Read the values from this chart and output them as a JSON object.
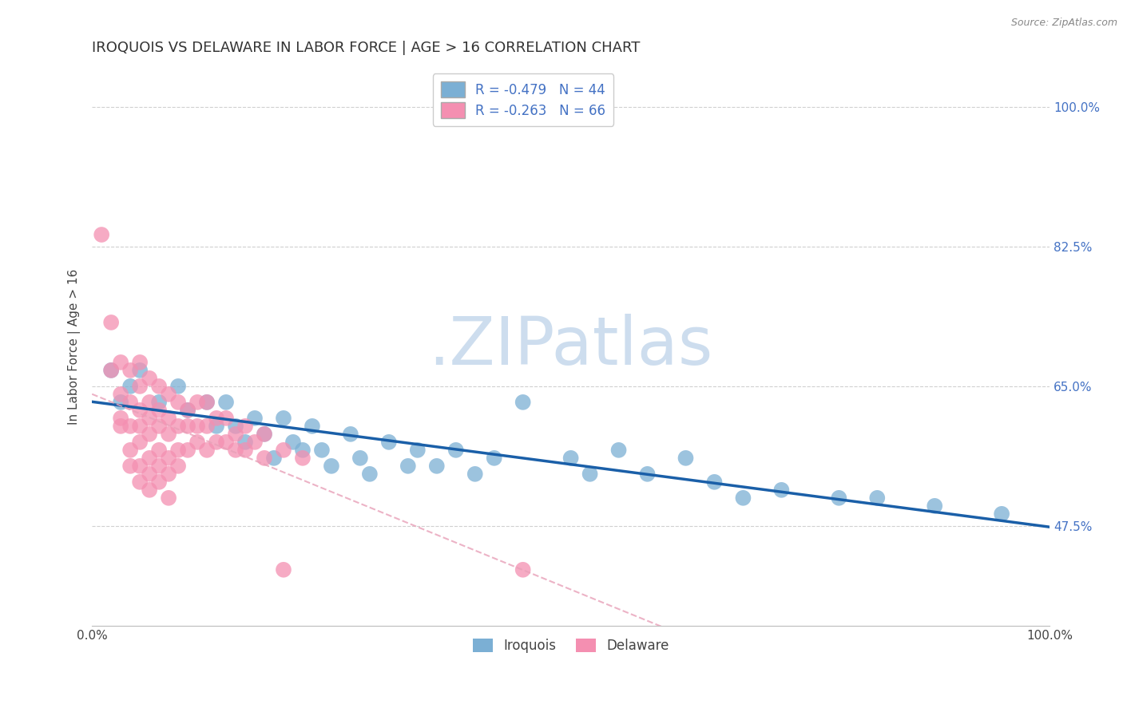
{
  "title": "IROQUOIS VS DELAWARE IN LABOR FORCE | AGE > 16 CORRELATION CHART",
  "source_text": "Source: ZipAtlas.com",
  "ylabel": "In Labor Force | Age > 16",
  "xlim": [
    0.0,
    1.0
  ],
  "ylim": [
    0.35,
    1.05
  ],
  "x_tick_labels": [
    "0.0%",
    "100.0%"
  ],
  "y_tick_labels": [
    "47.5%",
    "65.0%",
    "82.5%",
    "100.0%"
  ],
  "y_tick_positions": [
    0.475,
    0.65,
    0.825,
    1.0
  ],
  "iroquois_color": "#7bafd4",
  "iroquois_line_color": "#1a5fa8",
  "delaware_color": "#f48fb1",
  "delaware_line_color": "#e8a0b8",
  "iroquois_scatter": [
    [
      0.02,
      0.67
    ],
    [
      0.03,
      0.63
    ],
    [
      0.04,
      0.65
    ],
    [
      0.05,
      0.67
    ],
    [
      0.07,
      0.63
    ],
    [
      0.09,
      0.65
    ],
    [
      0.1,
      0.62
    ],
    [
      0.12,
      0.63
    ],
    [
      0.13,
      0.6
    ],
    [
      0.14,
      0.63
    ],
    [
      0.15,
      0.6
    ],
    [
      0.16,
      0.58
    ],
    [
      0.17,
      0.61
    ],
    [
      0.18,
      0.59
    ],
    [
      0.19,
      0.56
    ],
    [
      0.2,
      0.61
    ],
    [
      0.21,
      0.58
    ],
    [
      0.22,
      0.57
    ],
    [
      0.23,
      0.6
    ],
    [
      0.24,
      0.57
    ],
    [
      0.25,
      0.55
    ],
    [
      0.27,
      0.59
    ],
    [
      0.28,
      0.56
    ],
    [
      0.29,
      0.54
    ],
    [
      0.31,
      0.58
    ],
    [
      0.33,
      0.55
    ],
    [
      0.34,
      0.57
    ],
    [
      0.36,
      0.55
    ],
    [
      0.38,
      0.57
    ],
    [
      0.4,
      0.54
    ],
    [
      0.42,
      0.56
    ],
    [
      0.45,
      0.63
    ],
    [
      0.5,
      0.56
    ],
    [
      0.52,
      0.54
    ],
    [
      0.55,
      0.57
    ],
    [
      0.58,
      0.54
    ],
    [
      0.62,
      0.56
    ],
    [
      0.65,
      0.53
    ],
    [
      0.68,
      0.51
    ],
    [
      0.72,
      0.52
    ],
    [
      0.78,
      0.51
    ],
    [
      0.82,
      0.51
    ],
    [
      0.88,
      0.5
    ],
    [
      0.95,
      0.49
    ]
  ],
  "delaware_scatter": [
    [
      0.01,
      0.84
    ],
    [
      0.02,
      0.73
    ],
    [
      0.02,
      0.67
    ],
    [
      0.03,
      0.68
    ],
    [
      0.03,
      0.64
    ],
    [
      0.03,
      0.61
    ],
    [
      0.03,
      0.6
    ],
    [
      0.04,
      0.67
    ],
    [
      0.04,
      0.63
    ],
    [
      0.04,
      0.6
    ],
    [
      0.04,
      0.57
    ],
    [
      0.04,
      0.55
    ],
    [
      0.05,
      0.68
    ],
    [
      0.05,
      0.65
    ],
    [
      0.05,
      0.62
    ],
    [
      0.05,
      0.6
    ],
    [
      0.05,
      0.58
    ],
    [
      0.05,
      0.55
    ],
    [
      0.05,
      0.53
    ],
    [
      0.06,
      0.66
    ],
    [
      0.06,
      0.63
    ],
    [
      0.06,
      0.61
    ],
    [
      0.06,
      0.59
    ],
    [
      0.06,
      0.56
    ],
    [
      0.06,
      0.54
    ],
    [
      0.06,
      0.52
    ],
    [
      0.07,
      0.65
    ],
    [
      0.07,
      0.62
    ],
    [
      0.07,
      0.6
    ],
    [
      0.07,
      0.57
    ],
    [
      0.07,
      0.55
    ],
    [
      0.07,
      0.53
    ],
    [
      0.08,
      0.64
    ],
    [
      0.08,
      0.61
    ],
    [
      0.08,
      0.59
    ],
    [
      0.08,
      0.56
    ],
    [
      0.08,
      0.54
    ],
    [
      0.08,
      0.51
    ],
    [
      0.09,
      0.63
    ],
    [
      0.09,
      0.6
    ],
    [
      0.09,
      0.57
    ],
    [
      0.09,
      0.55
    ],
    [
      0.1,
      0.62
    ],
    [
      0.1,
      0.6
    ],
    [
      0.1,
      0.57
    ],
    [
      0.11,
      0.63
    ],
    [
      0.11,
      0.6
    ],
    [
      0.11,
      0.58
    ],
    [
      0.12,
      0.63
    ],
    [
      0.12,
      0.6
    ],
    [
      0.12,
      0.57
    ],
    [
      0.13,
      0.61
    ],
    [
      0.13,
      0.58
    ],
    [
      0.14,
      0.61
    ],
    [
      0.14,
      0.58
    ],
    [
      0.15,
      0.59
    ],
    [
      0.15,
      0.57
    ],
    [
      0.16,
      0.6
    ],
    [
      0.16,
      0.57
    ],
    [
      0.17,
      0.58
    ],
    [
      0.18,
      0.59
    ],
    [
      0.18,
      0.56
    ],
    [
      0.2,
      0.57
    ],
    [
      0.2,
      0.42
    ],
    [
      0.22,
      0.56
    ],
    [
      0.45,
      0.42
    ]
  ],
  "background_color": "#ffffff",
  "grid_color": "#d0d0d0",
  "watermark_text": ".ZIPatlas",
  "watermark_color": "#c5d8ec",
  "title_fontsize": 13,
  "axis_label_fontsize": 11,
  "tick_fontsize": 11
}
